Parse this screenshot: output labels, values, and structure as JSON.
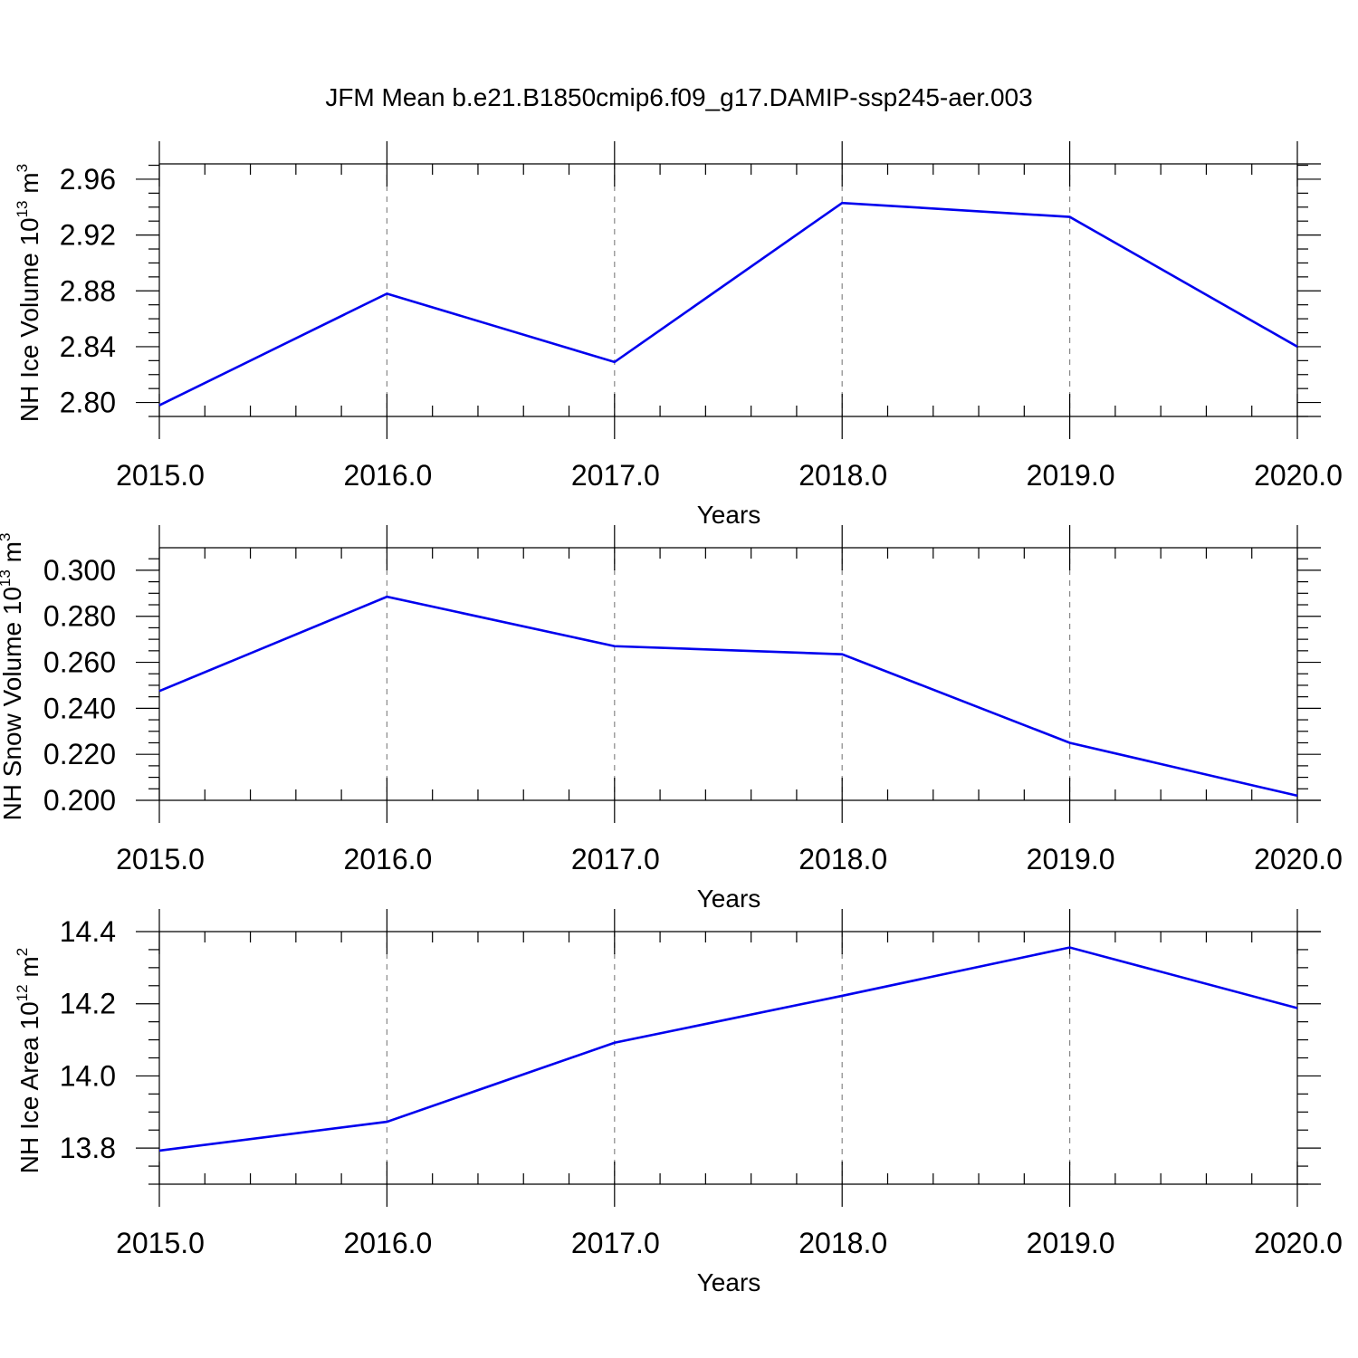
{
  "title": "JFM Mean b.e21.B1850cmip6.f09_g17.DAMIP-ssp245-aer.003",
  "colors": {
    "series": "#0000ee",
    "grid": "#888888",
    "axes": "#000000"
  },
  "chart_data": [
    {
      "type": "line",
      "xlabel": "Years",
      "ylabel": "NH Ice Volume 10",
      "ylabel_exponent": "13",
      "ylabel_unit": " m",
      "ylabel_unit_exponent": "3",
      "x": [
        2015,
        2016,
        2017,
        2018,
        2019,
        2020
      ],
      "xticks": [
        "2015.0",
        "2016.0",
        "2017.0",
        "2018.0",
        "2019.0",
        "2020.0"
      ],
      "yticks": [
        "2.80",
        "2.84",
        "2.88",
        "2.92",
        "2.96"
      ],
      "ytick_values": [
        2.8,
        2.84,
        2.88,
        2.92,
        2.96
      ],
      "ylim": [
        2.79,
        2.971
      ],
      "xlim": [
        2015,
        2020.1
      ],
      "grid_x": true,
      "series": [
        {
          "values": [
            2.798,
            2.878,
            2.829,
            2.943,
            2.933,
            2.84
          ]
        }
      ]
    },
    {
      "type": "line",
      "xlabel": "Years",
      "ylabel": "NH Snow Volume 10",
      "ylabel_exponent": "13",
      "ylabel_unit": " m",
      "ylabel_unit_exponent": "3",
      "x": [
        2015,
        2016,
        2017,
        2018,
        2019,
        2020
      ],
      "xticks": [
        "2015.0",
        "2016.0",
        "2017.0",
        "2018.0",
        "2019.0",
        "2020.0"
      ],
      "yticks": [
        "0.200",
        "0.220",
        "0.240",
        "0.260",
        "0.280",
        "0.300"
      ],
      "ytick_values": [
        0.2,
        0.22,
        0.24,
        0.26,
        0.28,
        0.3
      ],
      "ylim": [
        0.2,
        0.3098
      ],
      "xlim": [
        2015,
        2020.1
      ],
      "grid_x": true,
      "series": [
        {
          "values": [
            0.2475,
            0.2885,
            0.267,
            0.2635,
            0.225,
            0.202
          ]
        }
      ]
    },
    {
      "type": "line",
      "xlabel": "Years",
      "ylabel": "NH Ice Area 10",
      "ylabel_exponent": "12",
      "ylabel_unit": " m",
      "ylabel_unit_exponent": "2",
      "x": [
        2015,
        2016,
        2017,
        2018,
        2019,
        2020
      ],
      "xticks": [
        "2015.0",
        "2016.0",
        "2017.0",
        "2018.0",
        "2019.0",
        "2020.0"
      ],
      "yticks": [
        "13.8",
        "14.0",
        "14.2",
        "14.4"
      ],
      "ytick_values": [
        13.8,
        14.0,
        14.2,
        14.4
      ],
      "ylim": [
        13.7,
        14.4
      ],
      "xlim": [
        2015,
        2020.1
      ],
      "grid_x": true,
      "series": [
        {
          "values": [
            13.793,
            13.873,
            14.092,
            14.222,
            14.356,
            14.188
          ]
        }
      ]
    }
  ]
}
